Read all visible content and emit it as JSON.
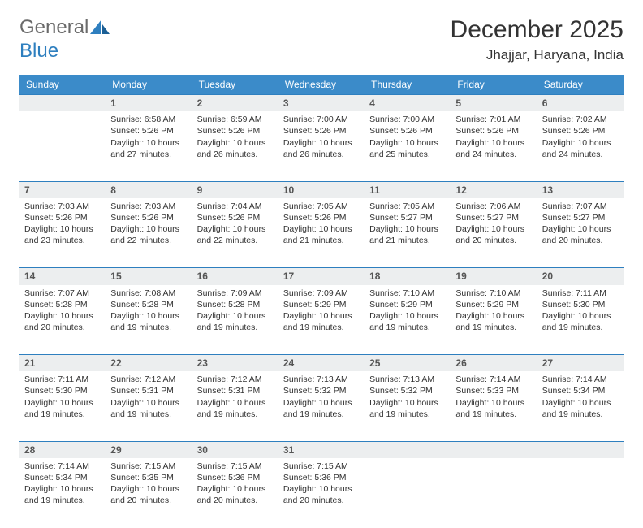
{
  "header": {
    "logo_part1": "General",
    "logo_part2": "Blue",
    "month_year": "December 2025",
    "location": "Jhajjar, Haryana, India"
  },
  "style": {
    "header_bg": "#3b8bc9",
    "header_fg": "#ffffff",
    "daynum_bg": "#eceeef",
    "daynum_border_top": "#2e7fbf",
    "body_bg": "#ffffff",
    "text_color": "#333333",
    "font_family": "Arial",
    "title_fontsize_pt": 22,
    "location_fontsize_pt": 13,
    "dayheader_fontsize_pt": 9,
    "cell_fontsize_pt": 8
  },
  "calendar": {
    "day_headers": [
      "Sunday",
      "Monday",
      "Tuesday",
      "Wednesday",
      "Thursday",
      "Friday",
      "Saturday"
    ],
    "first_weekday_index": 1,
    "days_in_month": 31,
    "days": {
      "1": {
        "sunrise": "6:58 AM",
        "sunset": "5:26 PM",
        "daylight": "10 hours and 27 minutes."
      },
      "2": {
        "sunrise": "6:59 AM",
        "sunset": "5:26 PM",
        "daylight": "10 hours and 26 minutes."
      },
      "3": {
        "sunrise": "7:00 AM",
        "sunset": "5:26 PM",
        "daylight": "10 hours and 26 minutes."
      },
      "4": {
        "sunrise": "7:00 AM",
        "sunset": "5:26 PM",
        "daylight": "10 hours and 25 minutes."
      },
      "5": {
        "sunrise": "7:01 AM",
        "sunset": "5:26 PM",
        "daylight": "10 hours and 24 minutes."
      },
      "6": {
        "sunrise": "7:02 AM",
        "sunset": "5:26 PM",
        "daylight": "10 hours and 24 minutes."
      },
      "7": {
        "sunrise": "7:03 AM",
        "sunset": "5:26 PM",
        "daylight": "10 hours and 23 minutes."
      },
      "8": {
        "sunrise": "7:03 AM",
        "sunset": "5:26 PM",
        "daylight": "10 hours and 22 minutes."
      },
      "9": {
        "sunrise": "7:04 AM",
        "sunset": "5:26 PM",
        "daylight": "10 hours and 22 minutes."
      },
      "10": {
        "sunrise": "7:05 AM",
        "sunset": "5:26 PM",
        "daylight": "10 hours and 21 minutes."
      },
      "11": {
        "sunrise": "7:05 AM",
        "sunset": "5:27 PM",
        "daylight": "10 hours and 21 minutes."
      },
      "12": {
        "sunrise": "7:06 AM",
        "sunset": "5:27 PM",
        "daylight": "10 hours and 20 minutes."
      },
      "13": {
        "sunrise": "7:07 AM",
        "sunset": "5:27 PM",
        "daylight": "10 hours and 20 minutes."
      },
      "14": {
        "sunrise": "7:07 AM",
        "sunset": "5:28 PM",
        "daylight": "10 hours and 20 minutes."
      },
      "15": {
        "sunrise": "7:08 AM",
        "sunset": "5:28 PM",
        "daylight": "10 hours and 19 minutes."
      },
      "16": {
        "sunrise": "7:09 AM",
        "sunset": "5:28 PM",
        "daylight": "10 hours and 19 minutes."
      },
      "17": {
        "sunrise": "7:09 AM",
        "sunset": "5:29 PM",
        "daylight": "10 hours and 19 minutes."
      },
      "18": {
        "sunrise": "7:10 AM",
        "sunset": "5:29 PM",
        "daylight": "10 hours and 19 minutes."
      },
      "19": {
        "sunrise": "7:10 AM",
        "sunset": "5:29 PM",
        "daylight": "10 hours and 19 minutes."
      },
      "20": {
        "sunrise": "7:11 AM",
        "sunset": "5:30 PM",
        "daylight": "10 hours and 19 minutes."
      },
      "21": {
        "sunrise": "7:11 AM",
        "sunset": "5:30 PM",
        "daylight": "10 hours and 19 minutes."
      },
      "22": {
        "sunrise": "7:12 AM",
        "sunset": "5:31 PM",
        "daylight": "10 hours and 19 minutes."
      },
      "23": {
        "sunrise": "7:12 AM",
        "sunset": "5:31 PM",
        "daylight": "10 hours and 19 minutes."
      },
      "24": {
        "sunrise": "7:13 AM",
        "sunset": "5:32 PM",
        "daylight": "10 hours and 19 minutes."
      },
      "25": {
        "sunrise": "7:13 AM",
        "sunset": "5:32 PM",
        "daylight": "10 hours and 19 minutes."
      },
      "26": {
        "sunrise": "7:14 AM",
        "sunset": "5:33 PM",
        "daylight": "10 hours and 19 minutes."
      },
      "27": {
        "sunrise": "7:14 AM",
        "sunset": "5:34 PM",
        "daylight": "10 hours and 19 minutes."
      },
      "28": {
        "sunrise": "7:14 AM",
        "sunset": "5:34 PM",
        "daylight": "10 hours and 19 minutes."
      },
      "29": {
        "sunrise": "7:15 AM",
        "sunset": "5:35 PM",
        "daylight": "10 hours and 20 minutes."
      },
      "30": {
        "sunrise": "7:15 AM",
        "sunset": "5:36 PM",
        "daylight": "10 hours and 20 minutes."
      },
      "31": {
        "sunrise": "7:15 AM",
        "sunset": "5:36 PM",
        "daylight": "10 hours and 20 minutes."
      }
    },
    "labels": {
      "sunrise_prefix": "Sunrise: ",
      "sunset_prefix": "Sunset: ",
      "daylight_prefix": "Daylight: "
    }
  }
}
